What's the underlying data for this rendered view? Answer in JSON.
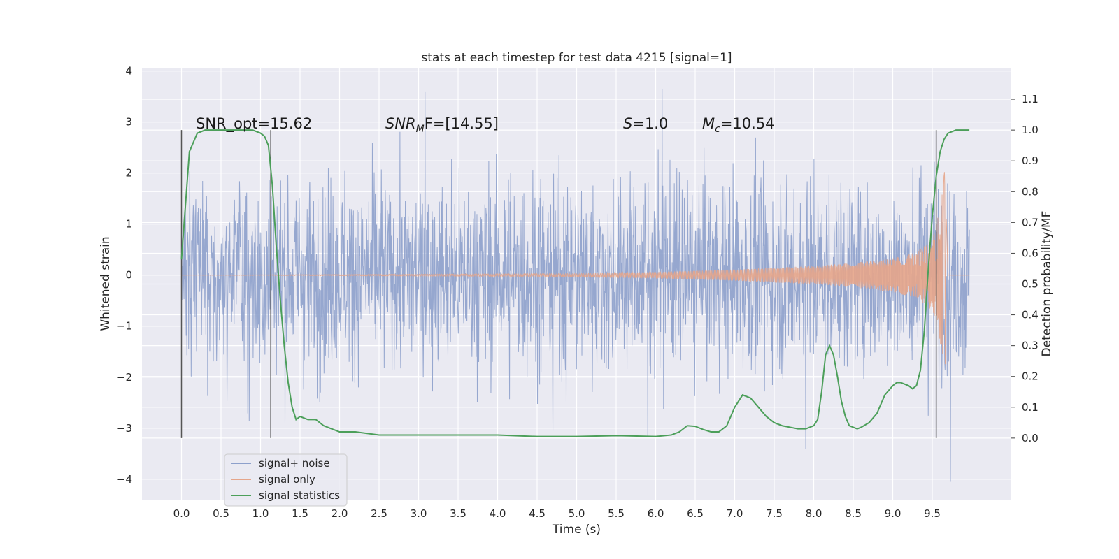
{
  "chart_data": {
    "type": "line",
    "title": "stats at each timestep for test data 4215 [signal=1]",
    "xlabel": "Time (s)",
    "ylabel": "Whitened strain",
    "ylabel_right": "Detection probability/MF",
    "xlim": [
      -0.5,
      10.5
    ],
    "ylim": [
      -4.4,
      4.05
    ],
    "ylim_right": [
      -0.2,
      1.2
    ],
    "x_ticks": [
      "0.0",
      "0.5",
      "1.0",
      "1.5",
      "2.0",
      "2.5",
      "3.0",
      "3.5",
      "4.0",
      "4.5",
      "5.0",
      "5.5",
      "6.0",
      "6.5",
      "7.0",
      "7.5",
      "8.0",
      "8.5",
      "9.0",
      "9.5"
    ],
    "y_ticks": [
      "−4",
      "−3",
      "−2",
      "−1",
      "0",
      "1",
      "2",
      "3",
      "4"
    ],
    "y_ticks_right": [
      "0.0",
      "0.1",
      "0.2",
      "0.3",
      "0.4",
      "0.5",
      "0.6",
      "0.7",
      "0.8",
      "0.9",
      "1.0",
      "1.1"
    ],
    "grid": true,
    "legend_position": "lower-left",
    "annotations": {
      "snr_opt": "SNR_opt=15.62",
      "snr_mf_main": "SNR",
      "snr_mf_sub": "M",
      "snr_mf_rest": "F=[14.55]",
      "s_main": "S",
      "s_rest": "=1.0",
      "mc_main": "M",
      "mc_sub": "c",
      "mc_rest": "=10.54"
    },
    "vertical_markers": [
      0.0,
      1.13,
      9.55
    ],
    "series": [
      {
        "name": "signal+ noise",
        "color": "#8da0cb",
        "description_visible": "noise band roughly between -1.5 and 1.5 with spikes up to 3.6 and down to -4.0",
        "x_range": [
          0.0,
          9.97
        ]
      },
      {
        "name": "signal only",
        "color": "#e5a58a",
        "envelope": {
          "x": [
            0.0,
            5.0,
            6.0,
            7.0,
            8.0,
            8.5,
            9.0,
            9.3,
            9.5,
            9.6,
            9.66,
            9.7,
            9.97
          ],
          "amplitude": [
            0.0,
            0.03,
            0.06,
            0.11,
            0.18,
            0.24,
            0.33,
            0.45,
            0.7,
            1.3,
            2.1,
            0.0,
            0.0
          ]
        }
      },
      {
        "name": "signal statistics",
        "color": "#4c9f5a",
        "x": [
          0.0,
          0.1,
          0.2,
          0.3,
          0.5,
          0.7,
          0.9,
          1.0,
          1.05,
          1.1,
          1.15,
          1.2,
          1.25,
          1.3,
          1.35,
          1.4,
          1.45,
          1.5,
          1.6,
          1.7,
          1.8,
          1.9,
          2.0,
          2.2,
          2.5,
          3.0,
          3.5,
          4.0,
          4.5,
          5.0,
          5.5,
          6.0,
          6.2,
          6.3,
          6.4,
          6.5,
          6.6,
          6.7,
          6.8,
          6.9,
          7.0,
          7.1,
          7.2,
          7.3,
          7.4,
          7.5,
          7.6,
          7.7,
          7.8,
          7.9,
          8.0,
          8.05,
          8.1,
          8.15,
          8.2,
          8.25,
          8.3,
          8.35,
          8.4,
          8.45,
          8.5,
          8.55,
          8.6,
          8.7,
          8.8,
          8.9,
          9.0,
          9.05,
          9.1,
          9.2,
          9.25,
          9.3,
          9.35,
          9.4,
          9.45,
          9.5,
          9.55,
          9.6,
          9.65,
          9.7,
          9.8,
          9.9,
          9.97
        ],
        "y": [
          0.58,
          0.93,
          0.99,
          1.0,
          1.0,
          1.0,
          1.0,
          0.99,
          0.98,
          0.95,
          0.82,
          0.62,
          0.45,
          0.3,
          0.18,
          0.1,
          0.06,
          0.07,
          0.06,
          0.06,
          0.04,
          0.03,
          0.02,
          0.02,
          0.01,
          0.01,
          0.01,
          0.01,
          0.005,
          0.005,
          0.008,
          0.005,
          0.01,
          0.02,
          0.04,
          0.038,
          0.028,
          0.02,
          0.02,
          0.04,
          0.1,
          0.14,
          0.13,
          0.1,
          0.07,
          0.05,
          0.04,
          0.035,
          0.03,
          0.03,
          0.04,
          0.06,
          0.15,
          0.27,
          0.3,
          0.27,
          0.2,
          0.12,
          0.07,
          0.04,
          0.035,
          0.03,
          0.035,
          0.05,
          0.08,
          0.14,
          0.17,
          0.18,
          0.18,
          0.17,
          0.16,
          0.17,
          0.22,
          0.35,
          0.55,
          0.72,
          0.85,
          0.93,
          0.97,
          0.99,
          1.0,
          1.0,
          1.0
        ]
      }
    ]
  }
}
